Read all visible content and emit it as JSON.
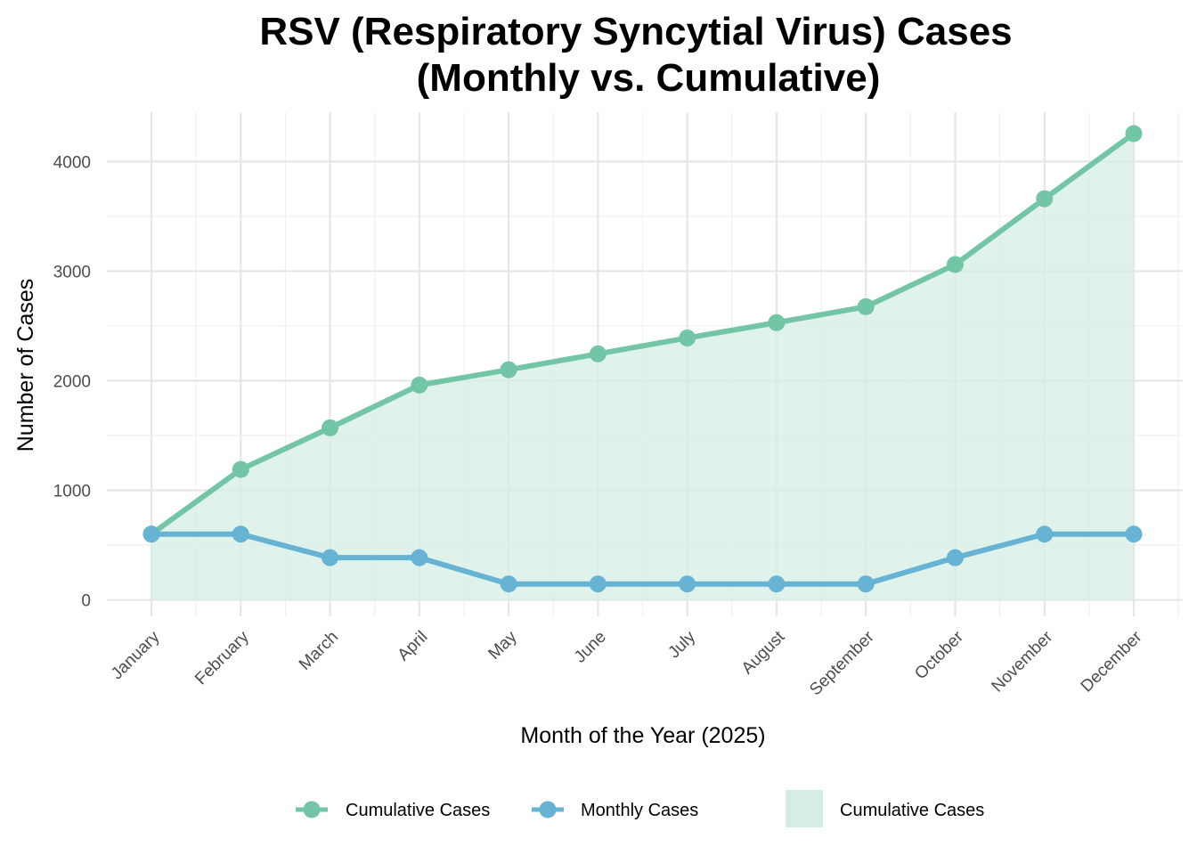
{
  "chart_data": {
    "type": "line",
    "title_lines": [
      "RSV (Respiratory Syncytial Virus) Cases",
      "(Monthly vs. Cumulative)"
    ],
    "xlabel": "Month of the Year (2025)",
    "ylabel": "Number of Cases",
    "categories": [
      "January",
      "February",
      "March",
      "April",
      "May",
      "June",
      "July",
      "August",
      "September",
      "October",
      "November",
      "December"
    ],
    "ylim": [
      -150,
      4450
    ],
    "yticks": [
      0,
      1000,
      2000,
      3000,
      4000
    ],
    "grid": true,
    "legend_position": "bottom",
    "series": [
      {
        "name": "Cumulative Cases",
        "kind": "line",
        "color": "#72c5a5",
        "values": [
          600,
          1190,
          1570,
          1960,
          2100,
          2245,
          2390,
          2530,
          2675,
          3060,
          3660,
          4255
        ]
      },
      {
        "name": "Monthly Cases",
        "kind": "line",
        "color": "#66b3d4",
        "values": [
          600,
          600,
          385,
          385,
          145,
          145,
          145,
          145,
          145,
          385,
          600,
          600
        ]
      },
      {
        "name": "Cumulative Cases",
        "kind": "area",
        "color": "#d6ede5",
        "values": [
          600,
          1190,
          1570,
          1960,
          2100,
          2245,
          2390,
          2530,
          2675,
          3060,
          3660,
          4255
        ]
      }
    ]
  }
}
